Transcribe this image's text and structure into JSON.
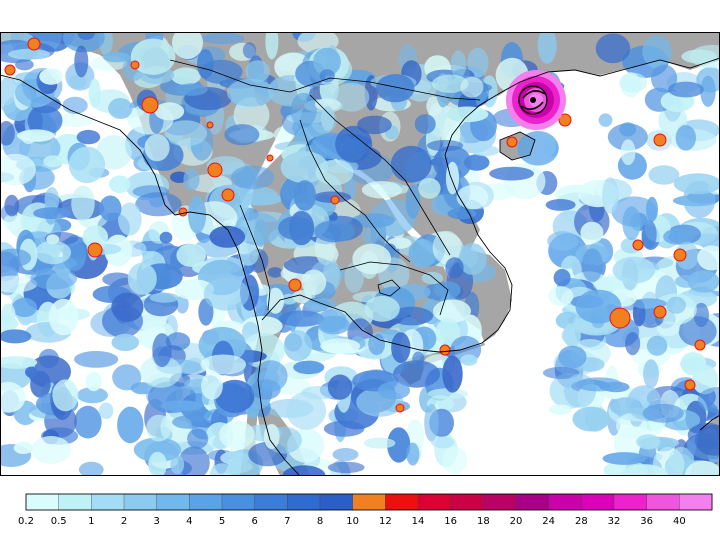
{
  "map": {
    "sea_color": "#ffffff",
    "land_color": "#a6a6a6",
    "coastline_color": "#000000",
    "border_color": "#000000",
    "typhoon_marker": "typhoon-symbol-icon"
  },
  "legend": {
    "ticks": [
      "0.2",
      "0.5",
      "1",
      "2",
      "3",
      "4",
      "5",
      "6",
      "7",
      "8",
      "10",
      "12",
      "14",
      "16",
      "18",
      "20",
      "24",
      "28",
      "32",
      "36",
      "40"
    ],
    "colors": [
      "#d9fcfc",
      "#bff2f7",
      "#a3dcf5",
      "#8ccbf0",
      "#73b8ec",
      "#5aa3e8",
      "#4a90e0",
      "#3b7dd8",
      "#2f6bd0",
      "#2b5fc7",
      "#f08020",
      "#ee1010",
      "#dd0033",
      "#cc0044",
      "#bb0066",
      "#aa0088",
      "#cc00aa",
      "#dd00bb",
      "#ee22cc",
      "#f055dd",
      "#f480ee"
    ]
  }
}
